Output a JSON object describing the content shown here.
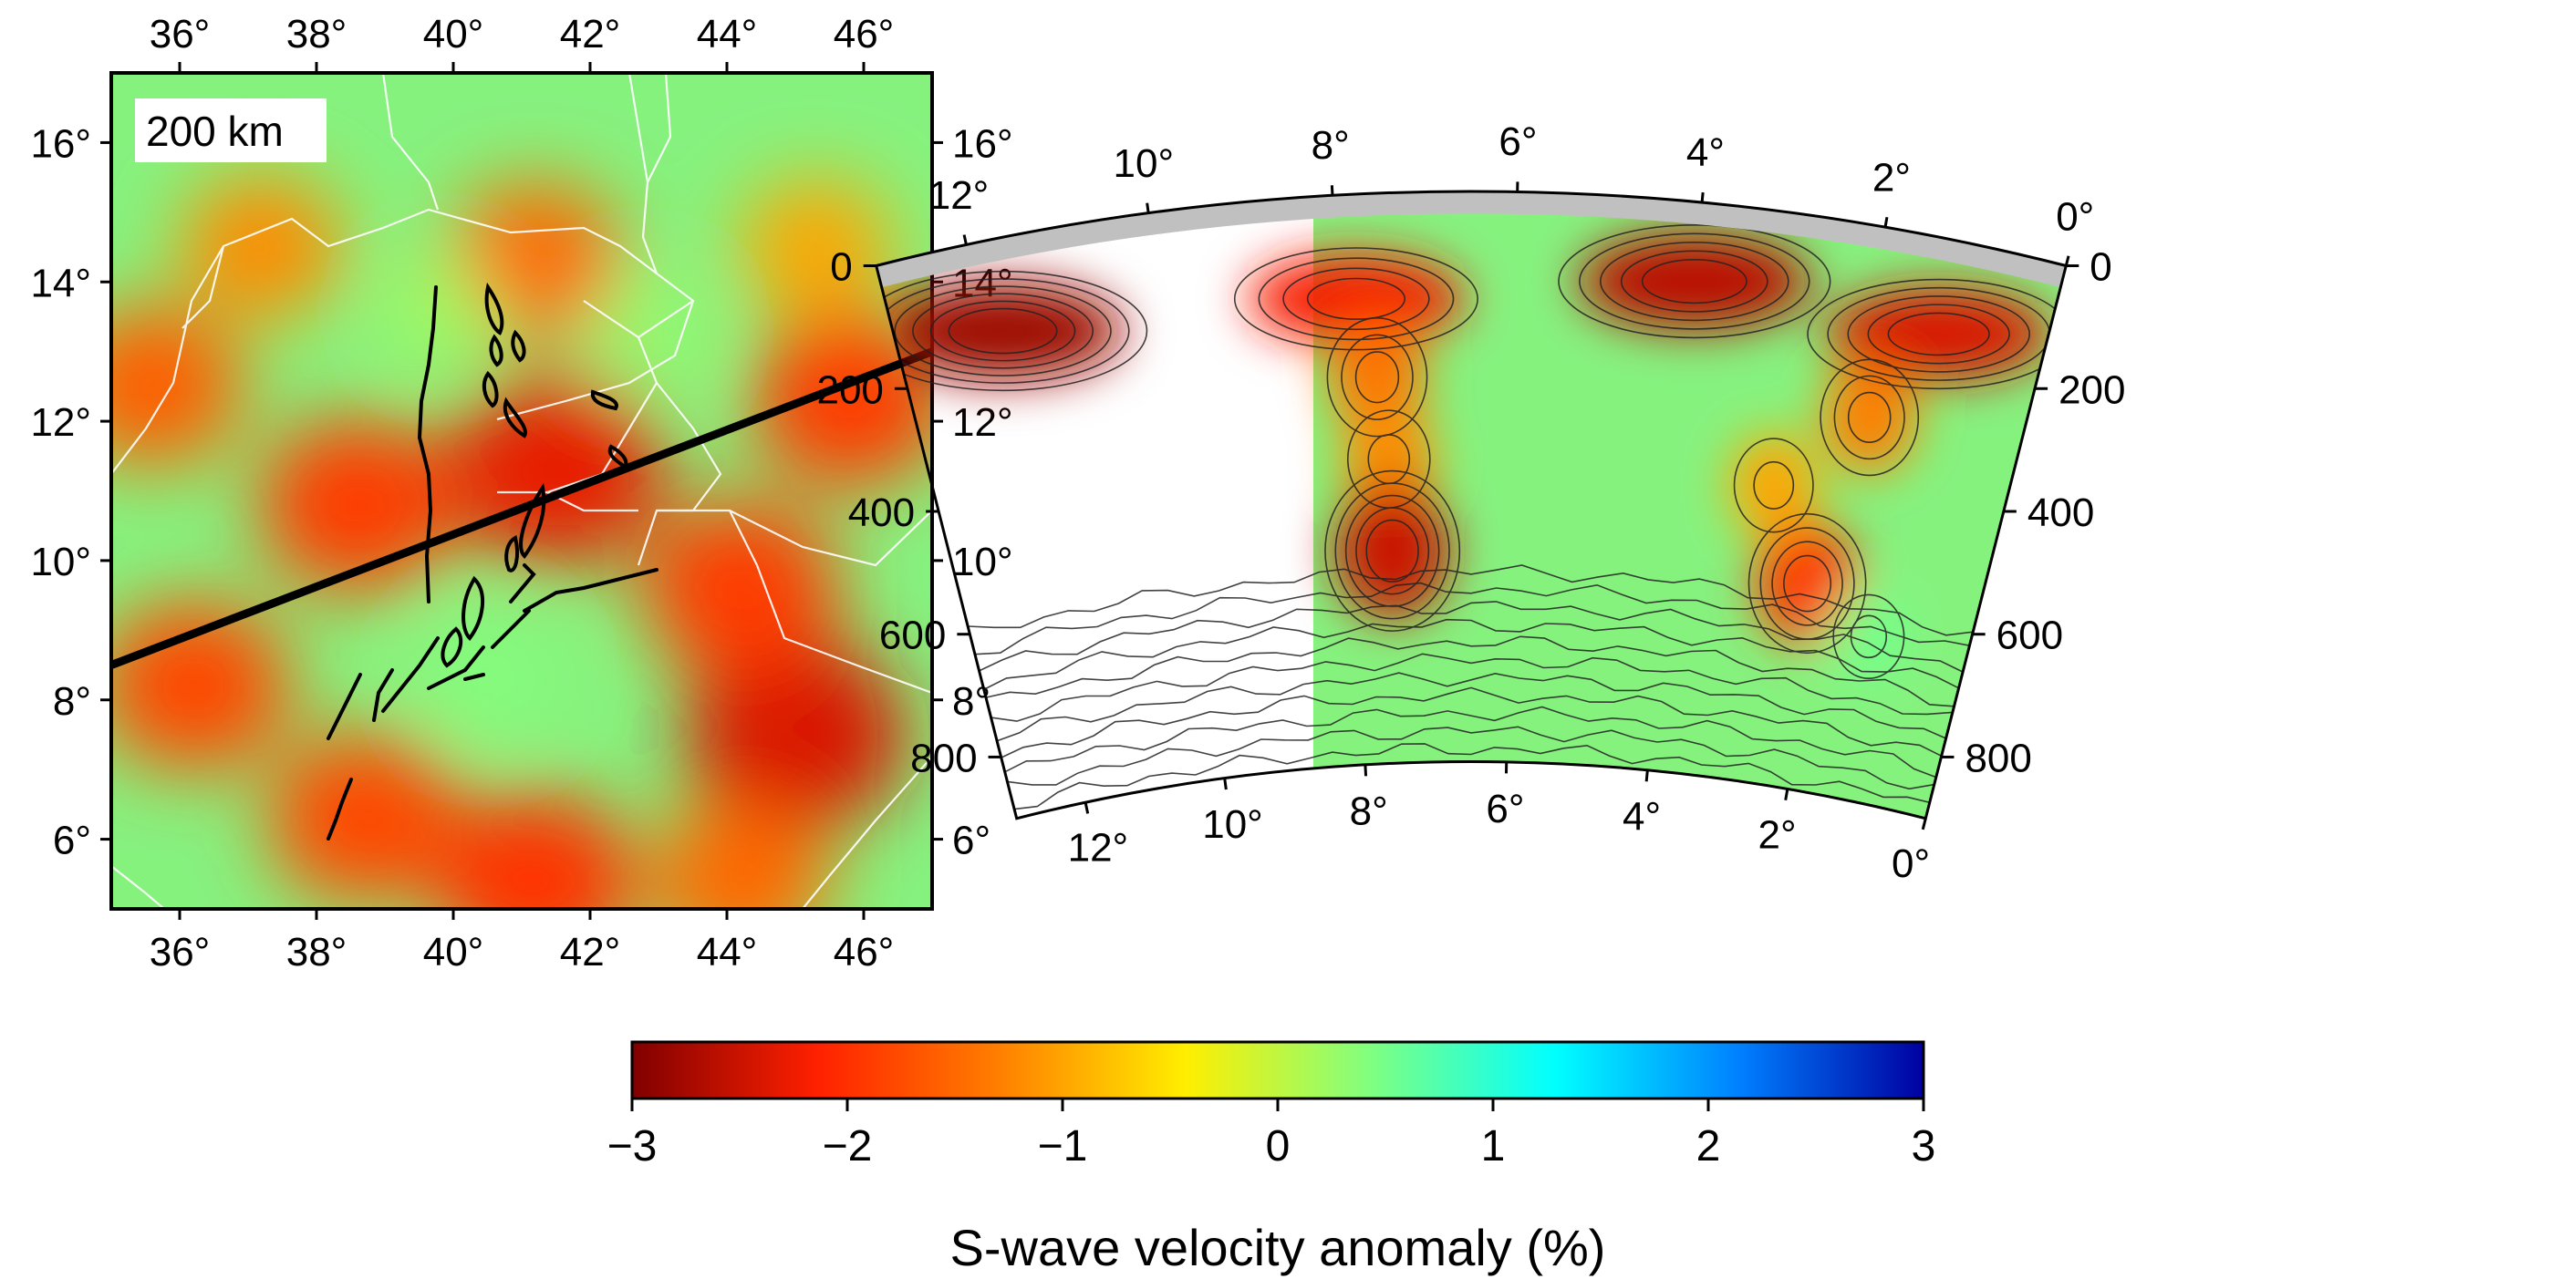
{
  "map_panel": {
    "depth_badge": "200 km",
    "lon_ticks": [
      36,
      38,
      40,
      42,
      44,
      46
    ],
    "lat_ticks": [
      6,
      8,
      10,
      12,
      14,
      16
    ],
    "lon_range": [
      35,
      47
    ],
    "lat_range": [
      5,
      17
    ],
    "degree_symbol": "°",
    "profile_line": {
      "start": [
        35,
        8.5
      ],
      "end": [
        47,
        13
      ]
    }
  },
  "section_panel": {
    "distance_ticks": [
      12,
      10,
      8,
      6,
      4,
      2,
      0
    ],
    "distance_range": [
      13,
      0
    ],
    "depth_ticks": [
      0,
      200,
      400,
      600,
      800
    ],
    "depth_range": [
      0,
      900
    ],
    "crust_color": "#c0c0c0"
  },
  "colorbar": {
    "title": "S-wave velocity anomaly (%)",
    "ticks": [
      "−3",
      "−2",
      "−1",
      "0",
      "1",
      "2",
      "3"
    ],
    "range": [
      -3,
      3
    ],
    "colors": [
      "#800000",
      "#ff2000",
      "#ff8000",
      "#ffee00",
      "#80ff80",
      "#00ffff",
      "#0080ff",
      "#0000a0"
    ]
  },
  "chart_data": [
    {
      "type": "heatmap",
      "title": "",
      "xlabel": "",
      "ylabel": "",
      "xlim": [
        35,
        47
      ],
      "ylim": [
        5,
        17
      ],
      "anomalies": [
        {
          "lon": 37.2,
          "lat": 14.5,
          "value": -1.2
        },
        {
          "lon": 45.3,
          "lat": 14.5,
          "value": -1.0
        },
        {
          "lon": 41.2,
          "lat": 14.3,
          "value": -1.5
        },
        {
          "lon": 35.6,
          "lat": 12.5,
          "value": -1.6
        },
        {
          "lon": 45.8,
          "lat": 12.3,
          "value": -1.9
        },
        {
          "lon": 38.6,
          "lat": 10.8,
          "value": -1.9
        },
        {
          "lon": 41.5,
          "lat": 11.3,
          "value": -2.3
        },
        {
          "lon": 36.2,
          "lat": 8.2,
          "value": -1.8
        },
        {
          "lon": 45.0,
          "lat": 7.5,
          "value": -2.4
        },
        {
          "lon": 44.2,
          "lat": 9.6,
          "value": -1.9
        },
        {
          "lon": 38.7,
          "lat": 6.3,
          "value": -1.8
        },
        {
          "lon": 41.2,
          "lat": 5.4,
          "value": -2.0
        },
        {
          "lon": 44.2,
          "lat": 5.4,
          "value": -1.5
        },
        {
          "lon": 40.5,
          "lat": 8.3,
          "value": 0.4
        },
        {
          "lon": 42.8,
          "lat": 13.3,
          "value": 0.3
        },
        {
          "lon": 39.8,
          "lat": 13.6,
          "value": 0.2
        }
      ]
    },
    {
      "type": "heatmap",
      "title": "",
      "xlabel": "",
      "ylabel": "",
      "xlim": [
        13,
        0
      ],
      "ylim": [
        900,
        0
      ],
      "anomalies": [
        {
          "x": 11.8,
          "depth": 145,
          "value": -2.8
        },
        {
          "x": 7.8,
          "depth": 165,
          "value": -2.2
        },
        {
          "x": 7.6,
          "depth": 290,
          "value": -1.4
        },
        {
          "x": 7.5,
          "depth": 420,
          "value": -1.2
        },
        {
          "x": 7.5,
          "depth": 565,
          "value": -2.5
        },
        {
          "x": 4.0,
          "depth": 125,
          "value": -2.6
        },
        {
          "x": 1.2,
          "depth": 150,
          "value": -2.4
        },
        {
          "x": 1.8,
          "depth": 300,
          "value": -1.3
        },
        {
          "x": 2.2,
          "depth": 575,
          "value": -1.9
        },
        {
          "x": 2.8,
          "depth": 430,
          "value": -1.0
        },
        {
          "x": 1.3,
          "depth": 640,
          "value": 0.5
        }
      ]
    }
  ]
}
